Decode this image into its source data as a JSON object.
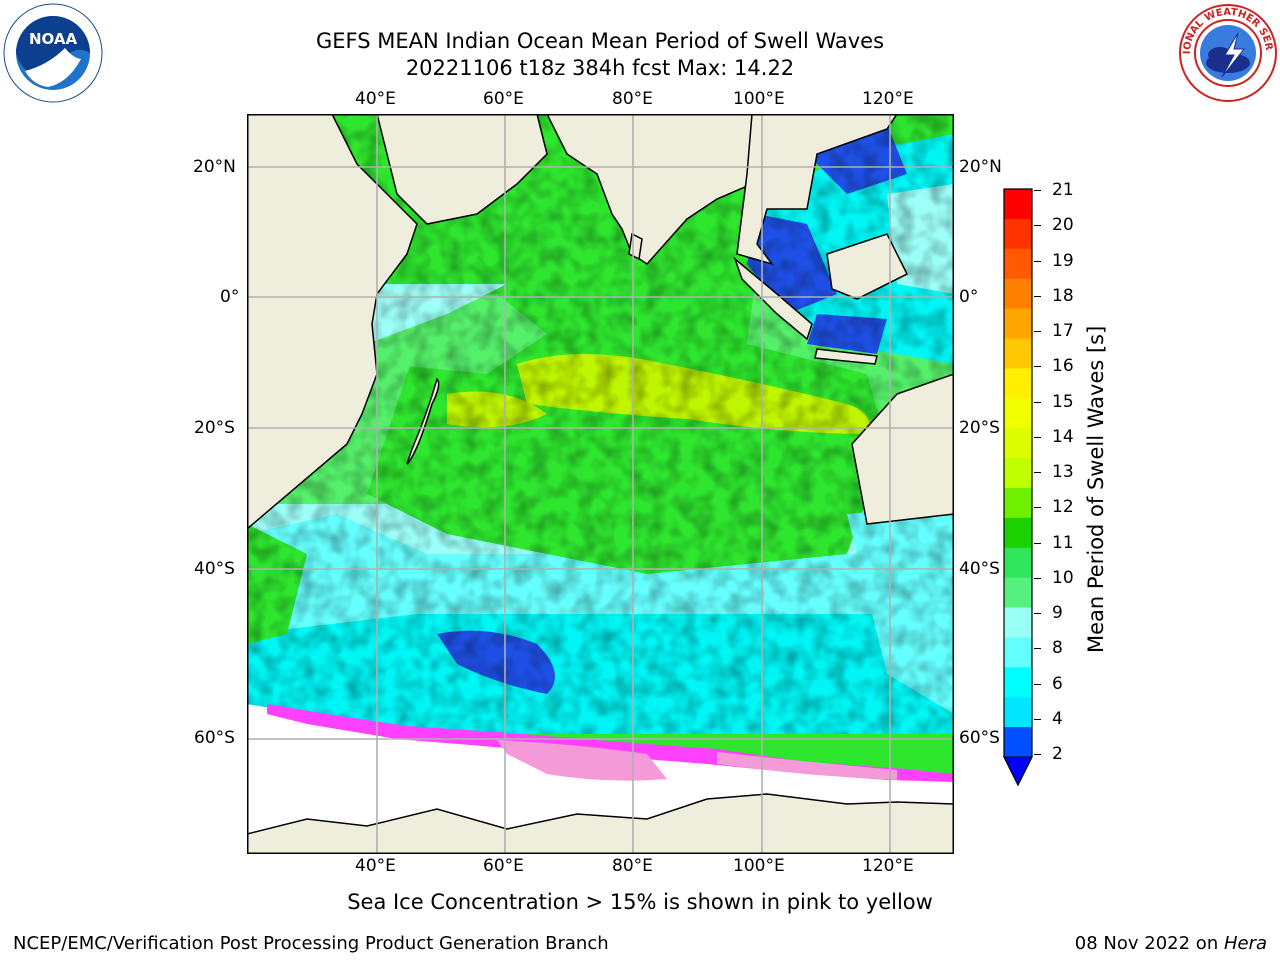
{
  "header": {
    "title_line1": "GEFS MEAN Indian Ocean Mean Period of Swell Waves",
    "title_line2": "20221106 t18z 384h fcst   Max: 14.22"
  },
  "logos": {
    "left": "NOAA",
    "left_ring_text": "NATIONAL OCEANIC AND ATMOSPHERIC ADMINISTRATION • U.S. DEPARTMENT OF COMMERCE",
    "right_ring_text": "NATIONAL WEATHER SERVICE"
  },
  "map": {
    "lon_labels": [
      "40°E",
      "60°E",
      "80°E",
      "100°E",
      "120°E"
    ],
    "lat_labels": [
      "20°N",
      "0°",
      "20°S",
      "40°S",
      "60°S"
    ],
    "colors": {
      "land": "#efeddc",
      "ice": "#ffffff",
      "deep_blue": "#1e50e6",
      "cyan": "#00f5f5",
      "light_cyan": "#66ffff",
      "pale_cyan": "#9cfff8",
      "green": "#2ee62e",
      "light_green": "#55f06a",
      "yellow_green": "#bff500",
      "magenta": "#ff40ff",
      "pink": "#f59ad8",
      "grid": "#b0b0b0"
    }
  },
  "colorbar": {
    "title": "Mean Period of Swell Waves [s]",
    "ticks": [
      "21",
      "20",
      "19",
      "18",
      "17",
      "16",
      "15",
      "14",
      "13",
      "12",
      "11",
      "10",
      "9",
      "8",
      "6",
      "4",
      "2"
    ],
    "colors": [
      "#ff0000",
      "#ff3300",
      "#ff5a00",
      "#ff7f00",
      "#ffa500",
      "#ffc800",
      "#ffef00",
      "#f0ff00",
      "#dcff00",
      "#bfff00",
      "#6ef000",
      "#19d200",
      "#30e65a",
      "#55f080",
      "#99fff5",
      "#66ffff",
      "#00ffff",
      "#00e6ff",
      "#0050ff"
    ],
    "under_color": "#0000ff"
  },
  "footer": {
    "note": "Sea Ice Concentration > 15% is shown in pink to yellow",
    "left": "NCEP/EMC/Verification Post Processing Product Generation Branch",
    "right_date": "08 Nov 2022 on ",
    "right_machine": "Hera"
  }
}
